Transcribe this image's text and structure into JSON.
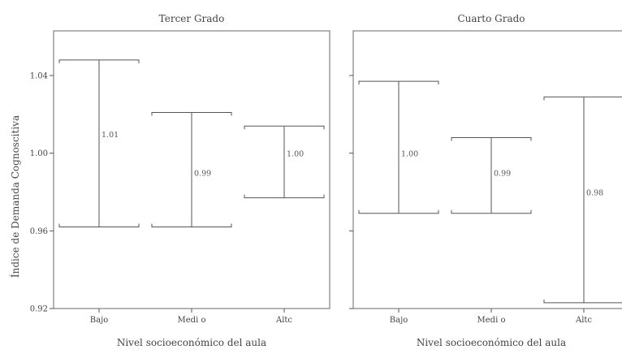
{
  "chart_data": {
    "type": "errorbar",
    "ylabel": "Índice de Demanda Cognoscitiva",
    "ylim": [
      0.92,
      1.063
    ],
    "yticks": [
      0.92,
      0.96,
      1.0,
      1.04
    ],
    "ytick_labels": [
      "0.92",
      "0.96",
      "1.00",
      "1.04"
    ],
    "categories": [
      "Bajo",
      "Medi o",
      "Altc"
    ],
    "panels": [
      {
        "title": "Tercer Grado",
        "xlabel": "Nivel socioeconómico del aula",
        "show_tick_labels": true,
        "bars": [
          {
            "category": "Bajo",
            "mean": 1.01,
            "lower": 0.962,
            "upper": 1.048,
            "label": "1.01"
          },
          {
            "category": "Medi o",
            "mean": 0.99,
            "lower": 0.962,
            "upper": 1.021,
            "label": "0.99"
          },
          {
            "category": "Altc",
            "mean": 1.0,
            "lower": 0.977,
            "upper": 1.014,
            "label": "1.00"
          }
        ]
      },
      {
        "title": "Cuarto Grado",
        "xlabel": "Nivel socioeconómico del aula",
        "show_tick_labels": false,
        "bars": [
          {
            "category": "Bajo",
            "mean": 1.0,
            "lower": 0.969,
            "upper": 1.037,
            "label": "1.00"
          },
          {
            "category": "Medi o",
            "mean": 0.99,
            "lower": 0.969,
            "upper": 1.008,
            "label": "0.99"
          },
          {
            "category": "Altc",
            "mean": 0.98,
            "lower": 0.923,
            "upper": 1.029,
            "label": "0.98"
          }
        ]
      }
    ]
  }
}
